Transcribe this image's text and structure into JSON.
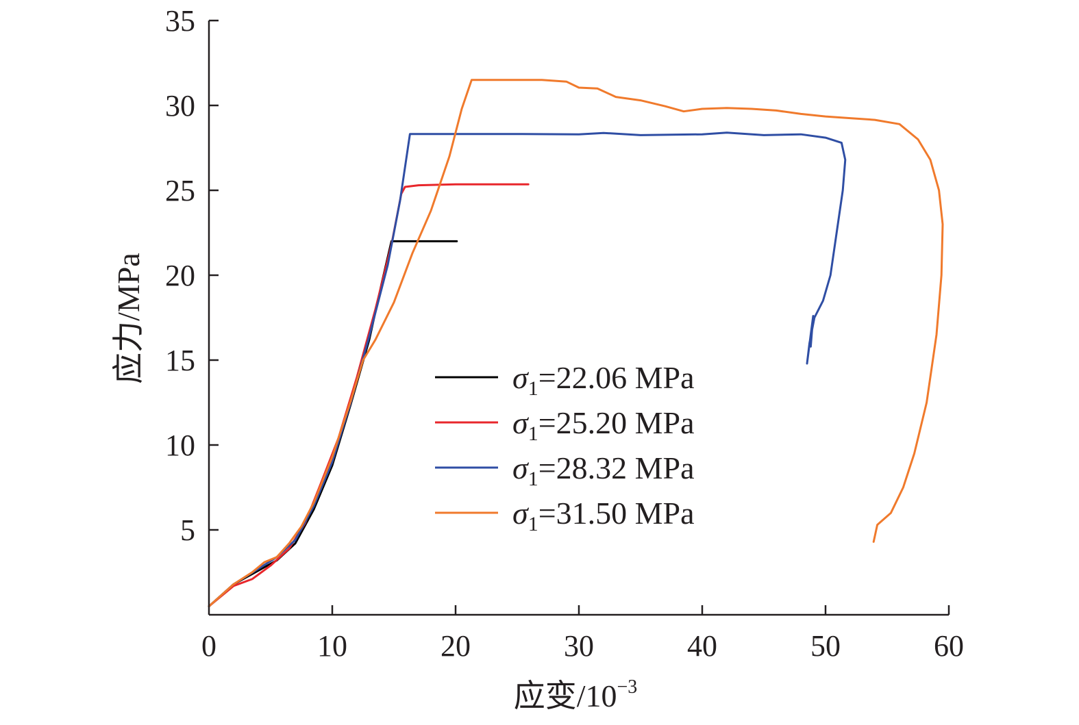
{
  "chart_data": {
    "type": "line",
    "title": "",
    "xlabel": "应变/10",
    "xlabel_exponent": "−3",
    "ylabel": "应力/MPa",
    "xlim": [
      0,
      60
    ],
    "ylim": [
      0,
      35
    ],
    "x_ticks": [
      0,
      10,
      20,
      30,
      40,
      50,
      60
    ],
    "x_tick_labels": [
      "0",
      "10",
      "20",
      "30",
      "40",
      "50",
      "60"
    ],
    "y_ticks": [
      5,
      10,
      15,
      20,
      25,
      30,
      35
    ],
    "y_tick_labels": [
      "5",
      "10",
      "15",
      "20",
      "25",
      "30",
      "35"
    ],
    "grid": false,
    "legend_position": "center",
    "series": [
      {
        "name_prefix": "σ",
        "name_subscript": "1",
        "name_suffix": "=22.06 MPa",
        "color": "#000000",
        "points": [
          [
            0,
            0.5
          ],
          [
            2,
            1.8
          ],
          [
            4,
            2.6
          ],
          [
            5.5,
            3.2
          ],
          [
            7,
            4.2
          ],
          [
            8.5,
            6.2
          ],
          [
            10,
            8.8
          ],
          [
            11.5,
            12.4
          ],
          [
            13,
            16.2
          ],
          [
            14,
            19.5
          ],
          [
            14.8,
            22.0
          ],
          [
            15.5,
            22.0
          ],
          [
            17,
            22.0
          ],
          [
            18.5,
            22.0
          ],
          [
            20.1,
            22.0
          ]
        ]
      },
      {
        "name_prefix": "σ",
        "name_subscript": "1",
        "name_suffix": "=25.20 MPa",
        "color": "#e8262b",
        "points": [
          [
            0,
            0.5
          ],
          [
            2,
            1.7
          ],
          [
            3.5,
            2.1
          ],
          [
            5,
            2.9
          ],
          [
            6.5,
            3.9
          ],
          [
            7.8,
            5.4
          ],
          [
            9,
            7.6
          ],
          [
            10.5,
            10.4
          ],
          [
            12,
            14.0
          ],
          [
            13.5,
            18.0
          ],
          [
            14.8,
            21.8
          ],
          [
            15.6,
            24.8
          ],
          [
            15.9,
            25.2
          ],
          [
            17,
            25.3
          ],
          [
            20,
            25.35
          ],
          [
            23,
            25.35
          ],
          [
            25.9,
            25.35
          ]
        ]
      },
      {
        "name_prefix": "σ",
        "name_subscript": "1",
        "name_suffix": "=28.32 MPa",
        "color": "#2f4ea4",
        "points": [
          [
            0,
            0.5
          ],
          [
            2,
            1.8
          ],
          [
            4,
            2.7
          ],
          [
            5.5,
            3.4
          ],
          [
            7,
            4.4
          ],
          [
            8.5,
            6.4
          ],
          [
            10,
            9.0
          ],
          [
            11.5,
            12.5
          ],
          [
            13,
            16.4
          ],
          [
            14.5,
            20.6
          ],
          [
            15.5,
            24.4
          ],
          [
            16.3,
            28.32
          ],
          [
            20,
            28.32
          ],
          [
            25,
            28.32
          ],
          [
            30,
            28.3
          ],
          [
            32,
            28.38
          ],
          [
            35,
            28.25
          ],
          [
            40,
            28.3
          ],
          [
            42,
            28.4
          ],
          [
            45,
            28.25
          ],
          [
            48,
            28.3
          ],
          [
            50,
            28.1
          ],
          [
            51.3,
            27.8
          ],
          [
            51.6,
            26.8
          ],
          [
            51.4,
            25.0
          ],
          [
            50.9,
            22.5
          ],
          [
            50.4,
            20.0
          ],
          [
            49.8,
            18.5
          ],
          [
            49.1,
            17.5
          ],
          [
            48.7,
            16.0
          ],
          [
            48.5,
            14.8
          ],
          [
            48.8,
            16.5
          ],
          [
            49.0,
            17.6
          ],
          [
            48.8,
            15.8
          ]
        ]
      },
      {
        "name_prefix": "σ",
        "name_subscript": "1",
        "name_suffix": "=31.50 MPa",
        "color": "#f07a2c",
        "points": [
          [
            0,
            0.5
          ],
          [
            2,
            1.8
          ],
          [
            3.5,
            2.5
          ],
          [
            4.5,
            3.1
          ],
          [
            5.5,
            3.4
          ],
          [
            6.5,
            4.2
          ],
          [
            7.5,
            5.2
          ],
          [
            8.5,
            6.6
          ],
          [
            10,
            9.3
          ],
          [
            11.5,
            12.6
          ],
          [
            12.5,
            15.0
          ],
          [
            13.5,
            16.2
          ],
          [
            15,
            18.4
          ],
          [
            16.5,
            21.3
          ],
          [
            18,
            23.8
          ],
          [
            19.5,
            27.0
          ],
          [
            20.5,
            29.8
          ],
          [
            21.3,
            31.5
          ],
          [
            24,
            31.5
          ],
          [
            27,
            31.5
          ],
          [
            29,
            31.4
          ],
          [
            30,
            31.05
          ],
          [
            31.5,
            31.0
          ],
          [
            33,
            30.5
          ],
          [
            35,
            30.3
          ],
          [
            37,
            29.95
          ],
          [
            38.5,
            29.65
          ],
          [
            40,
            29.8
          ],
          [
            42,
            29.85
          ],
          [
            44,
            29.8
          ],
          [
            46,
            29.7
          ],
          [
            48,
            29.5
          ],
          [
            50,
            29.35
          ],
          [
            52,
            29.25
          ],
          [
            54,
            29.15
          ],
          [
            56,
            28.9
          ],
          [
            57.5,
            28.0
          ],
          [
            58.5,
            26.8
          ],
          [
            59.2,
            25.0
          ],
          [
            59.5,
            23.0
          ],
          [
            59.4,
            20.0
          ],
          [
            59.0,
            16.5
          ],
          [
            58.2,
            12.5
          ],
          [
            57.2,
            9.5
          ],
          [
            56.3,
            7.5
          ],
          [
            55.3,
            6.0
          ],
          [
            54.2,
            5.3
          ],
          [
            53.9,
            4.3
          ]
        ]
      }
    ]
  }
}
